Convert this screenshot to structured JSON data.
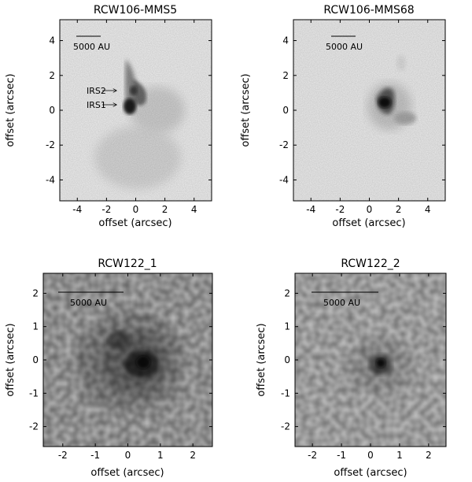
{
  "panels": [
    {
      "title": "RCW106-MMS5",
      "xlabel": "offset (arcsec)",
      "ylabel": "offset (arcsec)",
      "xlim": [
        -5.2,
        5.2
      ],
      "ylim": [
        -5.2,
        5.2
      ],
      "xticks": [
        "-4",
        "-2",
        "0",
        "2",
        "4"
      ],
      "yticks": [
        "-4",
        "-2",
        "0",
        "2",
        "4"
      ],
      "scalebar": "5000 AU",
      "annotations": [
        "IRS2",
        "IRS1"
      ]
    },
    {
      "title": "RCW106-MMS68",
      "xlabel": "offset (arcsec)",
      "ylabel": "offset (arcsec)",
      "xlim": [
        -5.2,
        5.2
      ],
      "ylim": [
        -5.2,
        5.2
      ],
      "xticks": [
        "-4",
        "-2",
        "0",
        "2",
        "4"
      ],
      "yticks": [
        "-4",
        "-2",
        "0",
        "2",
        "4"
      ],
      "scalebar": "5000 AU"
    },
    {
      "title": "RCW122_1",
      "xlabel": "offset (arcsec)",
      "ylabel": "offset (arcsec)",
      "xlim": [
        -2.6,
        2.6
      ],
      "ylim": [
        -2.6,
        2.6
      ],
      "xticks": [
        "-2",
        "-1",
        "0",
        "1",
        "2"
      ],
      "yticks": [
        "-2",
        "-1",
        "0",
        "1",
        "2"
      ],
      "scalebar": "5000 AU"
    },
    {
      "title": "RCW122_2",
      "xlabel": "offset (arcsec)",
      "ylabel": "offset (arcsec)",
      "xlim": [
        -2.6,
        2.6
      ],
      "ylim": [
        -2.6,
        2.6
      ],
      "xticks": [
        "-2",
        "-1",
        "0",
        "1",
        "2"
      ],
      "yticks": [
        "-2",
        "-1",
        "0",
        "1",
        "2"
      ],
      "scalebar": "5000 AU"
    }
  ]
}
